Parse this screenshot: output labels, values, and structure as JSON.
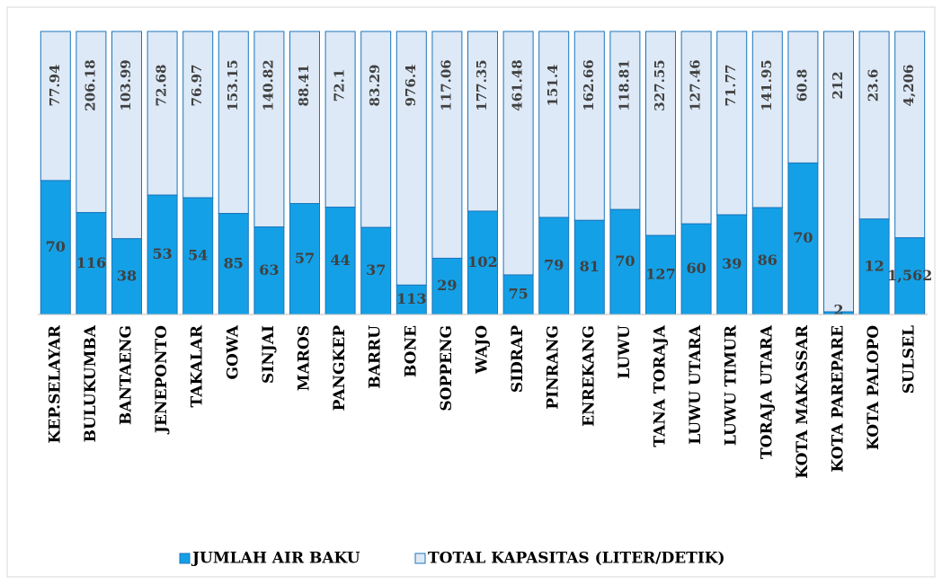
{
  "chart_data": {
    "type": "bar",
    "stacked": "percent",
    "categories": [
      "KEP.SELAYAR",
      "BULUKUMBA",
      "BANTAENG",
      "JENEPONTO",
      "TAKALAR",
      "GOWA",
      "SINJAI",
      "MAROS",
      "PANGKEP",
      "BARRU",
      "BONE",
      "SOPPENG",
      "WAJO",
      "SIDRAP",
      "PINRANG",
      "ENREKANG",
      "LUWU",
      "TANA TORAJA",
      "LUWU UTARA",
      "LUWU TIMUR",
      "TORAJA UTARA",
      "KOTA MAKASSAR",
      "KOTA PAREPARE",
      "KOTA PALOPO",
      "SULSEL"
    ],
    "series": [
      {
        "name": "JUMLAH AIR BAKU",
        "color": "#14a0e6",
        "values": [
          70,
          116,
          38,
          53,
          54,
          85,
          63,
          57,
          44,
          37,
          113,
          29,
          102,
          75,
          79,
          81,
          70,
          127,
          60,
          39,
          86,
          70,
          2,
          12,
          1562
        ],
        "value_labels": [
          "70",
          "116",
          "38",
          "53",
          "54",
          "85",
          "63",
          "57",
          "44",
          "37",
          "113",
          "29",
          "102",
          "75",
          "79",
          "81",
          "70",
          "127",
          "60",
          "39",
          "86",
          "70",
          "2",
          "12",
          "1,562"
        ]
      },
      {
        "name": "TOTAL KAPASITAS (LITER/DETIK)",
        "color": "#dde9f6",
        "values": [
          77.94,
          206.18,
          103.99,
          72.68,
          76.97,
          153.15,
          140.82,
          88.41,
          72.1,
          83.29,
          976.4,
          117.06,
          177.35,
          461.48,
          151.4,
          162.66,
          118.81,
          327.55,
          127.46,
          71.77,
          141.95,
          60.8,
          212,
          23.6,
          4206
        ],
        "value_labels": [
          "77.94",
          "206.18",
          "103.99",
          "72.68",
          "76.97",
          "153.15",
          "140.82",
          "88.41",
          "72.1",
          "83.29",
          "976.4",
          "117.06",
          "177.35",
          "461.48",
          "151.4",
          "162.66",
          "118.81",
          "327.55",
          "127.46",
          "71.77",
          "141.95",
          "60.8",
          "212",
          "23.6",
          "4,206"
        ]
      }
    ],
    "legend": "bottom"
  }
}
